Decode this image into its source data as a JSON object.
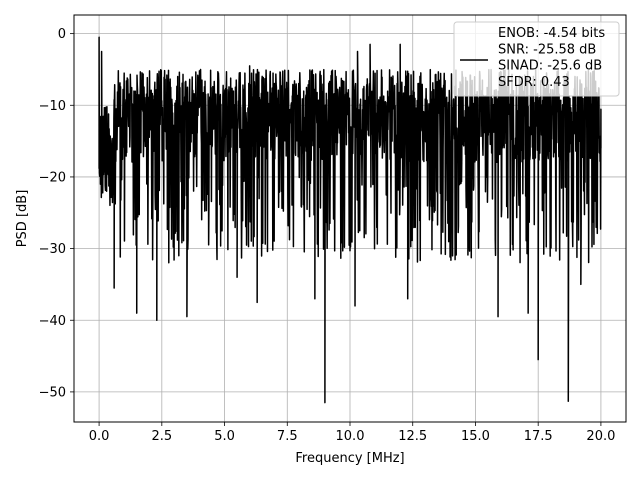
{
  "chart_data": {
    "type": "line",
    "xlabel": "Frequency [MHz]",
    "ylabel": "PSD [dB]",
    "xlim": [
      -1.0,
      21.0
    ],
    "ylim": [
      -54.2,
      2.6
    ],
    "x_ticks": [
      0.0,
      2.5,
      5.0,
      7.5,
      10.0,
      12.5,
      15.0,
      17.5,
      20.0
    ],
    "x_tick_labels": [
      "0.0",
      "2.5",
      "5.0",
      "7.5",
      "10.0",
      "12.5",
      "15.0",
      "17.5",
      "20.0"
    ],
    "y_ticks": [
      0,
      -10,
      -20,
      -30,
      -40,
      -50
    ],
    "y_tick_labels": [
      "0",
      "−10",
      "−20",
      "−30",
      "−40",
      "−50"
    ],
    "grid": true,
    "legend_position": "top-right",
    "legend": [
      "ENOB: -4.54 bits",
      "SNR: -25.58 dB",
      "SINAD: -25.6 dB",
      "SFDR: 0.43"
    ],
    "series": [
      {
        "color": "#000000",
        "x_range": [
          0.0,
          20.0
        ],
        "typical_range_db": [
          -28,
          -5
        ],
        "points": [
          {
            "x": 0.0,
            "y": -0.5
          },
          {
            "x": 0.05,
            "y": -16
          },
          {
            "x": 0.1,
            "y": -2.5
          },
          {
            "x": 0.3,
            "y": -22
          },
          {
            "x": 0.6,
            "y": -35.5
          },
          {
            "x": 1.5,
            "y": -39
          },
          {
            "x": 2.3,
            "y": -40
          },
          {
            "x": 3.5,
            "y": -39.5
          },
          {
            "x": 5.5,
            "y": -34
          },
          {
            "x": 6.0,
            "y": -4.5
          },
          {
            "x": 6.3,
            "y": -37.5
          },
          {
            "x": 8.6,
            "y": -37
          },
          {
            "x": 9.0,
            "y": -51.5
          },
          {
            "x": 10.2,
            "y": -38
          },
          {
            "x": 10.3,
            "y": -2.5
          },
          {
            "x": 10.8,
            "y": -1.5
          },
          {
            "x": 12.0,
            "y": -1.5
          },
          {
            "x": 12.3,
            "y": -37
          },
          {
            "x": 15.9,
            "y": -39.5
          },
          {
            "x": 17.1,
            "y": -39
          },
          {
            "x": 17.5,
            "y": -45.5
          },
          {
            "x": 18.7,
            "y": -51.3
          },
          {
            "x": 19.2,
            "y": -35
          },
          {
            "x": 20.0,
            "y": -16
          }
        ]
      }
    ]
  }
}
